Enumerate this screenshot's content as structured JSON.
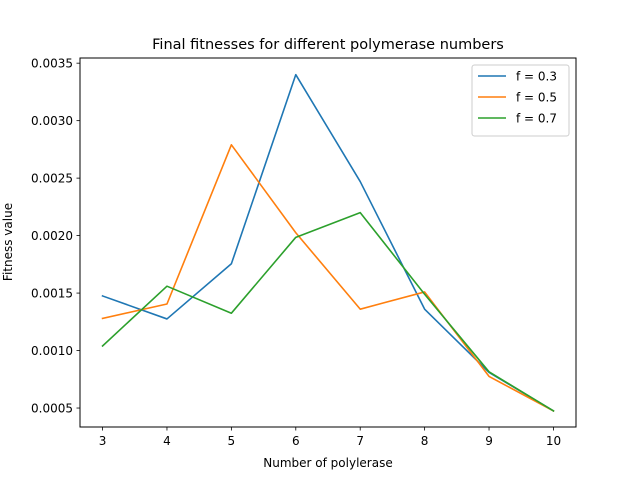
{
  "chart_data": {
    "type": "line",
    "title": "Final fitnesses for different polymerase numbers",
    "xlabel": "Number of polylerase",
    "ylabel": "Fitness value",
    "x": [
      3,
      4,
      5,
      6,
      7,
      8,
      9,
      10
    ],
    "xticks": [
      "3",
      "4",
      "5",
      "6",
      "7",
      "8",
      "9",
      "10"
    ],
    "yticks": [
      "0.0005",
      "0.0010",
      "0.0015",
      "0.0020",
      "0.0025",
      "0.0030",
      "0.0035"
    ],
    "xlim": [
      2.65,
      10.35
    ],
    "ylim": [
      0.000335,
      0.003545
    ],
    "grid": false,
    "legend_position": "top-right",
    "series": [
      {
        "name": "f = 0.3",
        "color": "#1f77b4",
        "values": [
          0.001475,
          0.001275,
          0.001755,
          0.0034,
          0.00247,
          0.00136,
          0.00081,
          0.000475
        ]
      },
      {
        "name": "f = 0.5",
        "color": "#ff7f0e",
        "values": [
          0.00128,
          0.001405,
          0.00279,
          0.002025,
          0.00136,
          0.00151,
          0.000775,
          0.000475
        ]
      },
      {
        "name": "f = 0.7",
        "color": "#2ca02c",
        "values": [
          0.00104,
          0.00156,
          0.001325,
          0.001985,
          0.0022,
          0.00149,
          0.000815,
          0.000475
        ]
      }
    ]
  }
}
